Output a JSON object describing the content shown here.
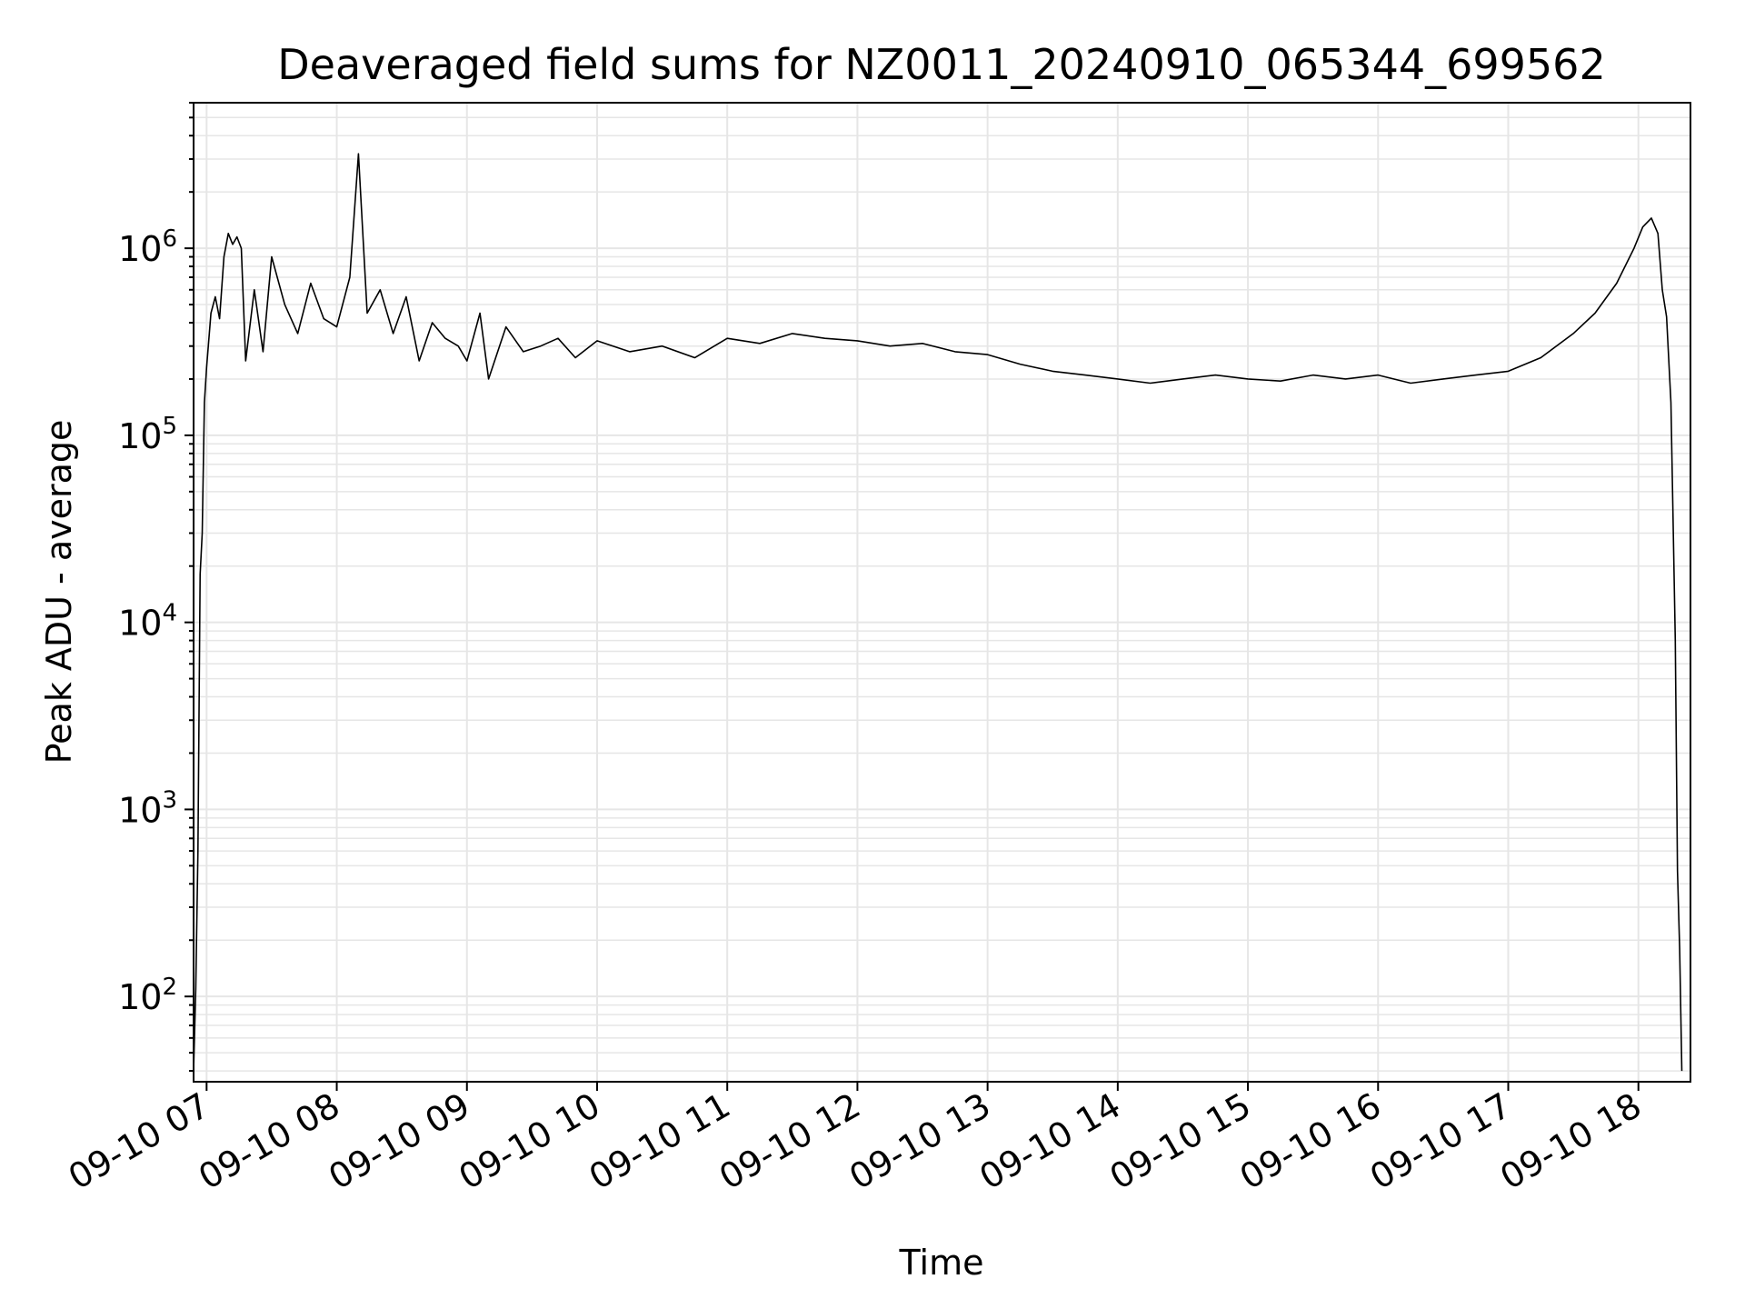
{
  "chart_data": {
    "type": "line",
    "title": "Deaveraged field sums for NZ0011_20240910_065344_699562",
    "xlabel": "Time",
    "ylabel": "Peak ADU - average",
    "yscale": "log",
    "xlim": [
      "2024-09-10 06:54",
      "2024-09-10 18:24"
    ],
    "ylim": [
      35,
      6000000
    ],
    "grid": true,
    "line_color": "#000000",
    "grid_color": "#e6e6e6",
    "x_ticks": [
      {
        "value": "2024-09-10 07:00",
        "label": "09-10 07"
      },
      {
        "value": "2024-09-10 08:00",
        "label": "09-10 08"
      },
      {
        "value": "2024-09-10 09:00",
        "label": "09-10 09"
      },
      {
        "value": "2024-09-10 10:00",
        "label": "09-10 10"
      },
      {
        "value": "2024-09-10 11:00",
        "label": "09-10 11"
      },
      {
        "value": "2024-09-10 12:00",
        "label": "09-10 12"
      },
      {
        "value": "2024-09-10 13:00",
        "label": "09-10 13"
      },
      {
        "value": "2024-09-10 14:00",
        "label": "09-10 14"
      },
      {
        "value": "2024-09-10 15:00",
        "label": "09-10 15"
      },
      {
        "value": "2024-09-10 16:00",
        "label": "09-10 16"
      },
      {
        "value": "2024-09-10 17:00",
        "label": "09-10 17"
      },
      {
        "value": "2024-09-10 18:00",
        "label": "09-10 18"
      }
    ],
    "y_ticks": [
      {
        "value": 100,
        "base": "10",
        "exp": "2"
      },
      {
        "value": 1000,
        "base": "10",
        "exp": "3"
      },
      {
        "value": 10000,
        "base": "10",
        "exp": "4"
      },
      {
        "value": 100000,
        "base": "10",
        "exp": "5"
      },
      {
        "value": 1000000,
        "base": "10",
        "exp": "6"
      }
    ],
    "series": [
      {
        "points": [
          [
            "2024-09-10 06:54",
            40
          ],
          [
            "2024-09-10 06:55",
            110
          ],
          [
            "2024-09-10 06:56",
            600
          ],
          [
            "2024-09-10 06:57",
            18000
          ],
          [
            "2024-09-10 06:58",
            30000
          ],
          [
            "2024-09-10 06:59",
            150000
          ],
          [
            "2024-09-10 07:00",
            230000
          ],
          [
            "2024-09-10 07:02",
            450000
          ],
          [
            "2024-09-10 07:04",
            550000
          ],
          [
            "2024-09-10 07:06",
            420000
          ],
          [
            "2024-09-10 07:08",
            900000
          ],
          [
            "2024-09-10 07:10",
            1200000
          ],
          [
            "2024-09-10 07:12",
            1050000
          ],
          [
            "2024-09-10 07:14",
            1150000
          ],
          [
            "2024-09-10 07:16",
            1000000
          ],
          [
            "2024-09-10 07:18",
            250000
          ],
          [
            "2024-09-10 07:22",
            600000
          ],
          [
            "2024-09-10 07:26",
            280000
          ],
          [
            "2024-09-10 07:30",
            900000
          ],
          [
            "2024-09-10 07:36",
            500000
          ],
          [
            "2024-09-10 07:42",
            350000
          ],
          [
            "2024-09-10 07:48",
            650000
          ],
          [
            "2024-09-10 07:54",
            420000
          ],
          [
            "2024-09-10 08:00",
            380000
          ],
          [
            "2024-09-10 08:06",
            700000
          ],
          [
            "2024-09-10 08:10",
            3200000
          ],
          [
            "2024-09-10 08:14",
            450000
          ],
          [
            "2024-09-10 08:20",
            600000
          ],
          [
            "2024-09-10 08:26",
            350000
          ],
          [
            "2024-09-10 08:32",
            550000
          ],
          [
            "2024-09-10 08:38",
            250000
          ],
          [
            "2024-09-10 08:44",
            400000
          ],
          [
            "2024-09-10 08:50",
            330000
          ],
          [
            "2024-09-10 08:56",
            300000
          ],
          [
            "2024-09-10 09:00",
            250000
          ],
          [
            "2024-09-10 09:06",
            450000
          ],
          [
            "2024-09-10 09:10",
            200000
          ],
          [
            "2024-09-10 09:18",
            380000
          ],
          [
            "2024-09-10 09:26",
            280000
          ],
          [
            "2024-09-10 09:34",
            300000
          ],
          [
            "2024-09-10 09:42",
            330000
          ],
          [
            "2024-09-10 09:50",
            260000
          ],
          [
            "2024-09-10 10:00",
            320000
          ],
          [
            "2024-09-10 10:15",
            280000
          ],
          [
            "2024-09-10 10:30",
            300000
          ],
          [
            "2024-09-10 10:45",
            260000
          ],
          [
            "2024-09-10 11:00",
            330000
          ],
          [
            "2024-09-10 11:15",
            310000
          ],
          [
            "2024-09-10 11:30",
            350000
          ],
          [
            "2024-09-10 11:45",
            330000
          ],
          [
            "2024-09-10 12:00",
            320000
          ],
          [
            "2024-09-10 12:15",
            300000
          ],
          [
            "2024-09-10 12:30",
            310000
          ],
          [
            "2024-09-10 12:45",
            280000
          ],
          [
            "2024-09-10 13:00",
            270000
          ],
          [
            "2024-09-10 13:15",
            240000
          ],
          [
            "2024-09-10 13:30",
            220000
          ],
          [
            "2024-09-10 13:45",
            210000
          ],
          [
            "2024-09-10 14:00",
            200000
          ],
          [
            "2024-09-10 14:15",
            190000
          ],
          [
            "2024-09-10 14:30",
            200000
          ],
          [
            "2024-09-10 14:45",
            210000
          ],
          [
            "2024-09-10 15:00",
            200000
          ],
          [
            "2024-09-10 15:15",
            195000
          ],
          [
            "2024-09-10 15:30",
            210000
          ],
          [
            "2024-09-10 15:45",
            200000
          ],
          [
            "2024-09-10 16:00",
            210000
          ],
          [
            "2024-09-10 16:15",
            190000
          ],
          [
            "2024-09-10 16:30",
            200000
          ],
          [
            "2024-09-10 16:45",
            210000
          ],
          [
            "2024-09-10 17:00",
            220000
          ],
          [
            "2024-09-10 17:15",
            260000
          ],
          [
            "2024-09-10 17:30",
            350000
          ],
          [
            "2024-09-10 17:40",
            450000
          ],
          [
            "2024-09-10 17:50",
            650000
          ],
          [
            "2024-09-10 17:58",
            1000000
          ],
          [
            "2024-09-10 18:02",
            1300000
          ],
          [
            "2024-09-10 18:06",
            1450000
          ],
          [
            "2024-09-10 18:09",
            1200000
          ],
          [
            "2024-09-10 18:11",
            600000
          ],
          [
            "2024-09-10 18:13",
            430000
          ],
          [
            "2024-09-10 18:15",
            150000
          ],
          [
            "2024-09-10 18:17",
            8000
          ],
          [
            "2024-09-10 18:18",
            470
          ],
          [
            "2024-09-10 18:19",
            180
          ],
          [
            "2024-09-10 18:20",
            40
          ]
        ]
      }
    ]
  }
}
